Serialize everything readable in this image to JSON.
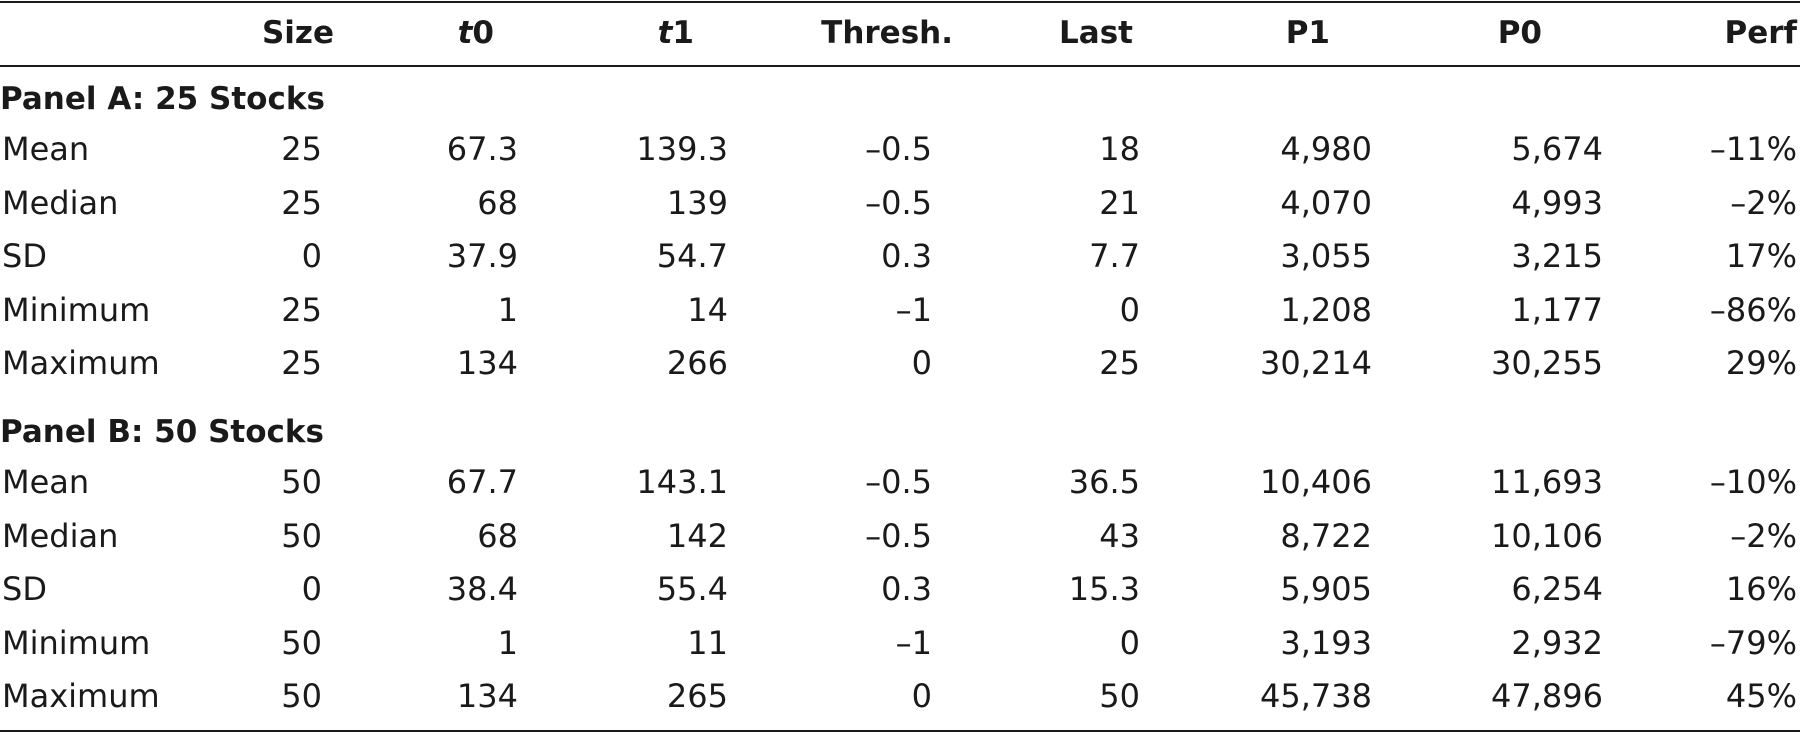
{
  "table": {
    "headers": {
      "size": "Size",
      "t0_italic": "t",
      "t0_rest": "0",
      "t1_italic": "t",
      "t1_rest": "1",
      "thresh": "Thresh.",
      "last": "Last",
      "p1": "P1",
      "p0": "P0",
      "perf": "Perf"
    },
    "panels": [
      {
        "title": "Panel A: 25 Stocks",
        "rows": [
          [
            "Mean",
            "25",
            "67.3",
            "139.3",
            "–0.5",
            "18",
            "4,980",
            "5,674",
            "–11%"
          ],
          [
            "Median",
            "25",
            "68",
            "139",
            "–0.5",
            "21",
            "4,070",
            "4,993",
            "–2%"
          ],
          [
            "SD",
            "0",
            "37.9",
            "54.7",
            "0.3",
            "7.7",
            "3,055",
            "3,215",
            "17%"
          ],
          [
            "Minimum",
            "25",
            "1",
            "14",
            "–1",
            "0",
            "1,208",
            "1,177",
            "–86%"
          ],
          [
            "Maximum",
            "25",
            "134",
            "266",
            "0",
            "25",
            "30,214",
            "30,255",
            "29%"
          ]
        ]
      },
      {
        "title": "Panel B: 50 Stocks",
        "rows": [
          [
            "Mean",
            "50",
            "67.7",
            "143.1",
            "–0.5",
            "36.5",
            "10,406",
            "11,693",
            "–10%"
          ],
          [
            "Median",
            "50",
            "68",
            "142",
            "–0.5",
            "43",
            "8,722",
            "10,106",
            "–2%"
          ],
          [
            "SD",
            "0",
            "38.4",
            "55.4",
            "0.3",
            "15.3",
            "5,905",
            "6,254",
            "16%"
          ],
          [
            "Minimum",
            "50",
            "1",
            "11",
            "–1",
            "0",
            "3,193",
            "2,932",
            "–79%"
          ],
          [
            "Maximum",
            "50",
            "134",
            "265",
            "0",
            "50",
            "45,738",
            "47,896",
            "45%"
          ]
        ]
      }
    ]
  }
}
